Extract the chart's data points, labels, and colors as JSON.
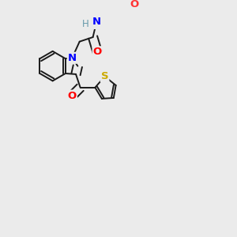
{
  "background_color": "#ebebeb",
  "bond_color": "#1a1a1a",
  "atom_colors": {
    "N": "#0000ff",
    "O": "#ff0000",
    "O_ether": "#ff3333",
    "S": "#ccaa00",
    "H": "#6699aa"
  },
  "figsize": [
    3.0,
    3.0
  ],
  "dpi": 100
}
